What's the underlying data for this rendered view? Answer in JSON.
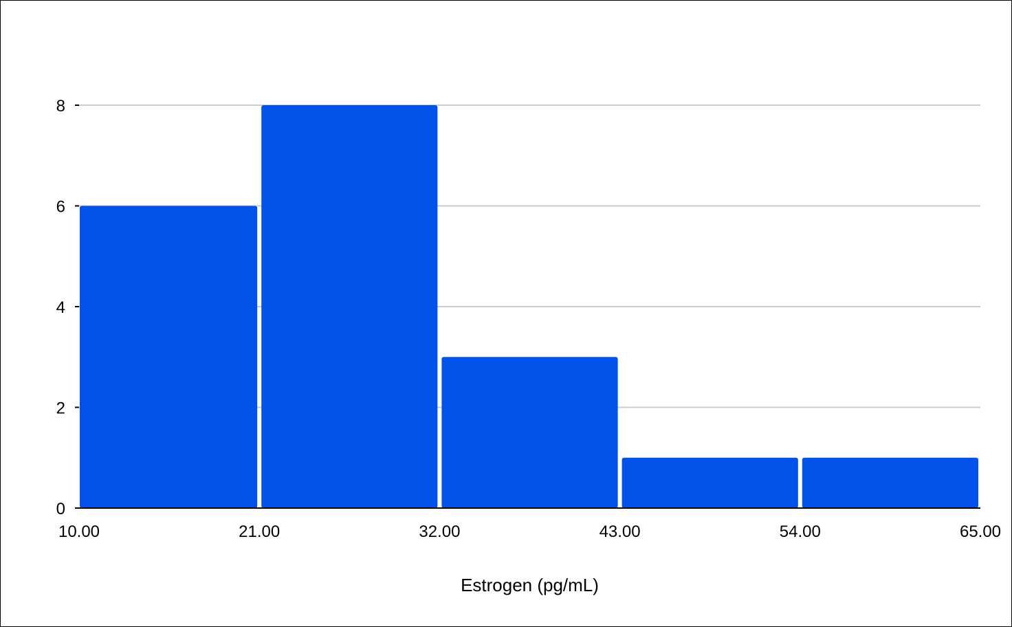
{
  "chart_data": {
    "type": "bar",
    "subtype": "histogram",
    "title": "",
    "xlabel": "Estrogen (pg/mL)",
    "ylabel": "",
    "bin_edges": [
      10,
      21,
      32,
      43,
      54,
      65
    ],
    "x_tick_labels": [
      "10.00",
      "21.00",
      "32.00",
      "43.00",
      "54.00",
      "65.00"
    ],
    "values": [
      6,
      8,
      3,
      1,
      1
    ],
    "y_ticks": [
      0,
      2,
      4,
      6,
      8
    ],
    "ylim": [
      0,
      8
    ],
    "xlim": [
      10,
      65
    ],
    "grid": "horizontal",
    "legend": "none",
    "colors": {
      "bar": "#0052e9",
      "grid": "#cccccc",
      "axis": "#000000",
      "background": "#ffffff"
    }
  }
}
